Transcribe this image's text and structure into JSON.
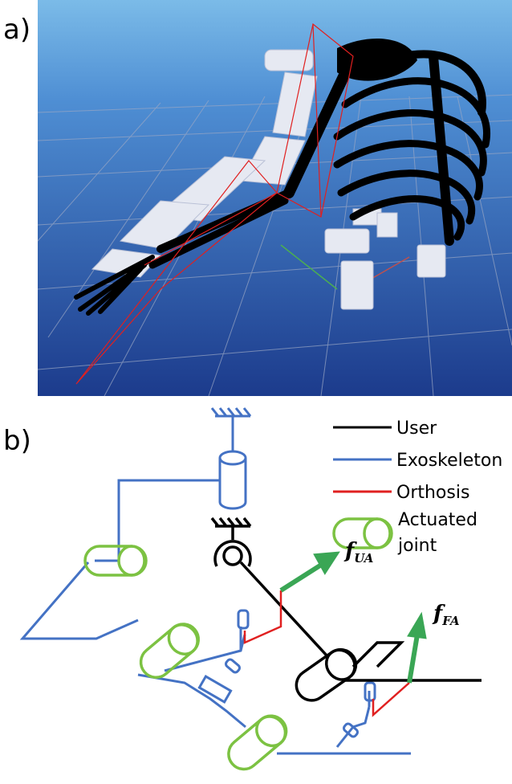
{
  "panels": [
    {
      "label": "a)"
    },
    {
      "label": "b)",
      "legend": [
        {
          "label": "User"
        },
        {
          "label": "Exoskeleton"
        },
        {
          "label": "Orthosis"
        },
        {
          "lines": [
            "Actuated",
            "joint"
          ]
        }
      ],
      "forces": [
        {
          "base": "f",
          "subscript": "UA"
        },
        {
          "base": "f",
          "subscript": "FA"
        }
      ]
    }
  ]
}
